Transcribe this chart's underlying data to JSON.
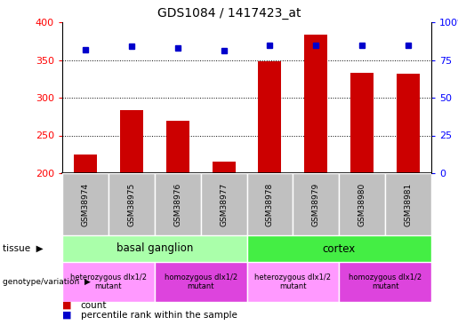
{
  "title": "GDS1084 / 1417423_at",
  "samples": [
    "GSM38974",
    "GSM38975",
    "GSM38976",
    "GSM38977",
    "GSM38978",
    "GSM38979",
    "GSM38980",
    "GSM38981"
  ],
  "counts": [
    225,
    283,
    270,
    215,
    348,
    383,
    333,
    332
  ],
  "percentiles": [
    82,
    84,
    83,
    81,
    85,
    85,
    85,
    85
  ],
  "ylim_left": [
    200,
    400
  ],
  "ylim_right": [
    0,
    100
  ],
  "yticks_left": [
    200,
    250,
    300,
    350,
    400
  ],
  "yticks_right": [
    0,
    25,
    50,
    75,
    100
  ],
  "bar_color": "#CC0000",
  "dot_color": "#0000CC",
  "bar_width": 0.5,
  "tissue_row": {
    "groups": [
      {
        "label": "basal ganglion",
        "start": 0,
        "end": 4,
        "color": "#AAFFAA"
      },
      {
        "label": "cortex",
        "start": 4,
        "end": 8,
        "color": "#44EE44"
      }
    ]
  },
  "genotype_row": {
    "groups": [
      {
        "label": "heterozygous dlx1/2\nmutant",
        "start": 0,
        "end": 2,
        "color": "#FF99FF"
      },
      {
        "label": "homozygous dlx1/2\nmutant",
        "start": 2,
        "end": 4,
        "color": "#DD44DD"
      },
      {
        "label": "heterozygous dlx1/2\nmutant",
        "start": 4,
        "end": 6,
        "color": "#FF99FF"
      },
      {
        "label": "homozygous dlx1/2\nmutant",
        "start": 6,
        "end": 8,
        "color": "#DD44DD"
      }
    ]
  },
  "tick_label_bg": "#C0C0C0",
  "legend_count_color": "#CC0000",
  "legend_dot_color": "#0000CC",
  "tissue_label": "tissue",
  "genotype_label": "genotype/variation",
  "fig_width": 5.15,
  "fig_height": 3.75,
  "dpi": 100
}
